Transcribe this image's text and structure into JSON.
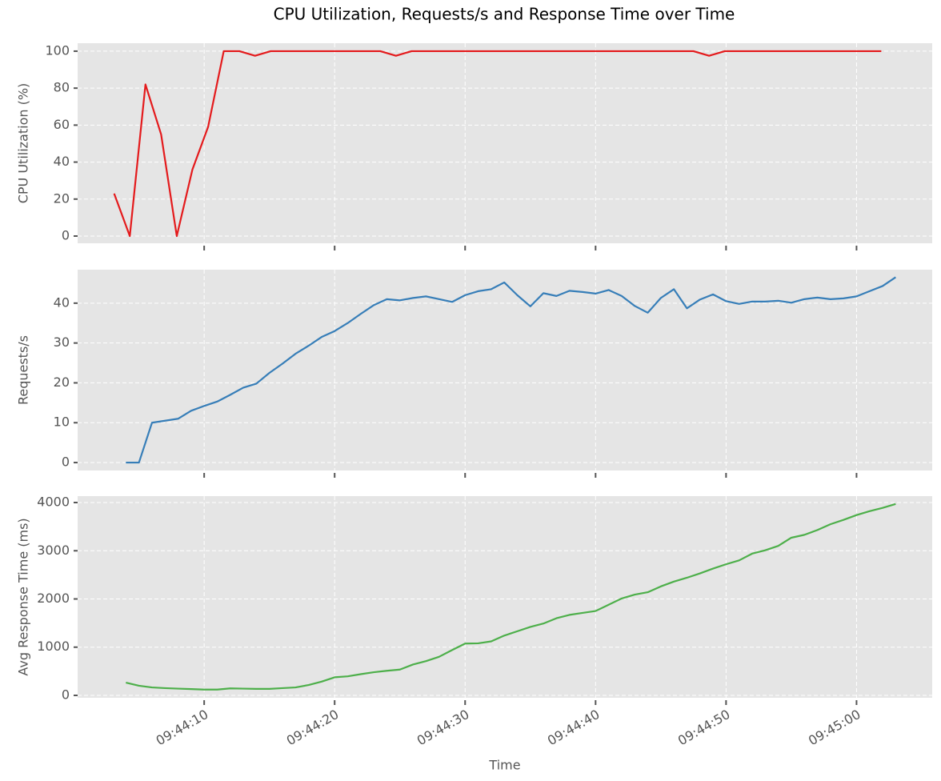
{
  "title": "CPU Utilization, Requests/s and Response Time over Time",
  "chart_data": [
    {
      "type": "line",
      "ylabel": "CPU Utilization (%)",
      "color": "#e41a1c",
      "grid": true,
      "x": [
        35043.1,
        35044.3,
        35045.5,
        35046.7,
        35047.9,
        35049.1,
        35050.3,
        35051.5,
        35052.7,
        35053.9,
        35055.1,
        35056.3,
        35057.5,
        35058.7,
        35059.9,
        35061.1,
        35062.3,
        35063.5,
        35064.7,
        35065.9,
        35067.1,
        35068.3,
        35069.5,
        35070.7,
        35071.9,
        35073.1,
        35074.3,
        35075.5,
        35076.7,
        35077.9,
        35079.1,
        35080.3,
        35081.5,
        35082.7,
        35083.9,
        35085.1,
        35086.3,
        35087.5,
        35088.7,
        35089.9,
        35091.1,
        35092.3,
        35093.5,
        35094.7,
        35095.9,
        35097.1,
        35098.3,
        35099.5,
        35100.7,
        35101.9
      ],
      "values": [
        23,
        0,
        82,
        55,
        0,
        36,
        59,
        100,
        100,
        97.5,
        100,
        100,
        100,
        100,
        100,
        100,
        100,
        100,
        97.5,
        100,
        100,
        100,
        100,
        100,
        100,
        100,
        100,
        100,
        100,
        100,
        100,
        100,
        100,
        100,
        100,
        100,
        100,
        100,
        97.5,
        100,
        100,
        100,
        100,
        100,
        100,
        100,
        100,
        100,
        100,
        100
      ],
      "xlim": [
        35040.3,
        35105.8
      ],
      "xticks": [
        35050,
        35060,
        35070,
        35080,
        35090,
        35100
      ],
      "ylim": [
        -3.9,
        104.3
      ],
      "yticks": [
        0,
        20,
        40,
        60,
        80,
        100
      ]
    },
    {
      "type": "line",
      "ylabel": "Requests/s",
      "color": "#377eb8",
      "grid": true,
      "x": [
        35044,
        35045,
        35046,
        35047,
        35048,
        35049,
        35050,
        35051,
        35052,
        35053,
        35054,
        35055,
        35056,
        35057,
        35058,
        35059,
        35060,
        35061,
        35062,
        35063,
        35064,
        35065,
        35066,
        35067,
        35068,
        35069,
        35070,
        35071,
        35072,
        35073,
        35074,
        35075,
        35076,
        35077,
        35078,
        35079,
        35080,
        35081,
        35082,
        35083,
        35084,
        35085,
        35086,
        35087,
        35088,
        35089,
        35090,
        35091,
        35092,
        35093,
        35094,
        35095,
        35096,
        35097,
        35098,
        35099,
        35100,
        35101,
        35102,
        35103
      ],
      "values": [
        0,
        0,
        10,
        10.5,
        11,
        13,
        14.2,
        15.3,
        17,
        18.8,
        19.8,
        22.5,
        24.8,
        27.3,
        29.3,
        31.5,
        33,
        35,
        37.3,
        39.5,
        41,
        40.7,
        41.3,
        41.7,
        41,
        40.3,
        42,
        43,
        43.5,
        45.2,
        42,
        39.2,
        42.5,
        41.8,
        43.1,
        42.8,
        42.4,
        43.3,
        41.8,
        39.3,
        37.6,
        41.3,
        43.5,
        38.7,
        40.9,
        42.2,
        40.5,
        39.8,
        40.4,
        40.4,
        40.6,
        40.1,
        41,
        41.4,
        41,
        41.2,
        41.7,
        43,
        44.3,
        46.5
      ],
      "xlim": [
        35040.3,
        35105.8
      ],
      "xticks": [
        35050,
        35060,
        35070,
        35080,
        35090,
        35100
      ],
      "ylim": [
        -2.0,
        48.4
      ],
      "yticks": [
        0,
        10,
        20,
        30,
        40
      ]
    },
    {
      "type": "line",
      "ylabel": "Avg Response Time (ms)",
      "xlabel": "Time",
      "color": "#4daf4a",
      "grid": true,
      "x": [
        35044,
        35045,
        35046,
        35047,
        35048,
        35049,
        35050,
        35051,
        35052,
        35053,
        35054,
        35055,
        35056,
        35057,
        35058,
        35059,
        35060,
        35061,
        35062,
        35063,
        35064,
        35065,
        35066,
        35067,
        35068,
        35069,
        35070,
        35071,
        35072,
        35073,
        35074,
        35075,
        35076,
        35077,
        35078,
        35079,
        35080,
        35081,
        35082,
        35083,
        35084,
        35085,
        35086,
        35087,
        35088,
        35089,
        35090,
        35091,
        35092,
        35093,
        35094,
        35095,
        35096,
        35097,
        35098,
        35099,
        35100,
        35101,
        35102,
        35103
      ],
      "values": [
        265,
        200,
        165,
        150,
        140,
        130,
        120,
        120,
        145,
        140,
        135,
        135,
        150,
        165,
        215,
        285,
        375,
        395,
        440,
        480,
        510,
        535,
        640,
        710,
        800,
        940,
        1075,
        1080,
        1120,
        1240,
        1330,
        1420,
        1490,
        1600,
        1670,
        1710,
        1750,
        1880,
        2010,
        2090,
        2140,
        2260,
        2360,
        2440,
        2530,
        2630,
        2720,
        2800,
        2940,
        3010,
        3100,
        3270,
        3330,
        3430,
        3550,
        3640,
        3740,
        3820,
        3890,
        3970
      ],
      "xlim": [
        35040.3,
        35105.8
      ],
      "xticks": [
        {
          "value": 35050,
          "label": "09:44:10"
        },
        {
          "value": 35060,
          "label": "09:44:20"
        },
        {
          "value": 35070,
          "label": "09:44:30"
        },
        {
          "value": 35080,
          "label": "09:44:40"
        },
        {
          "value": 35090,
          "label": "09:44:50"
        },
        {
          "value": 35100,
          "label": "09:45:00"
        }
      ],
      "ylim": [
        -50,
        4133
      ],
      "yticks": [
        0,
        1000,
        2000,
        3000,
        4000
      ]
    }
  ]
}
